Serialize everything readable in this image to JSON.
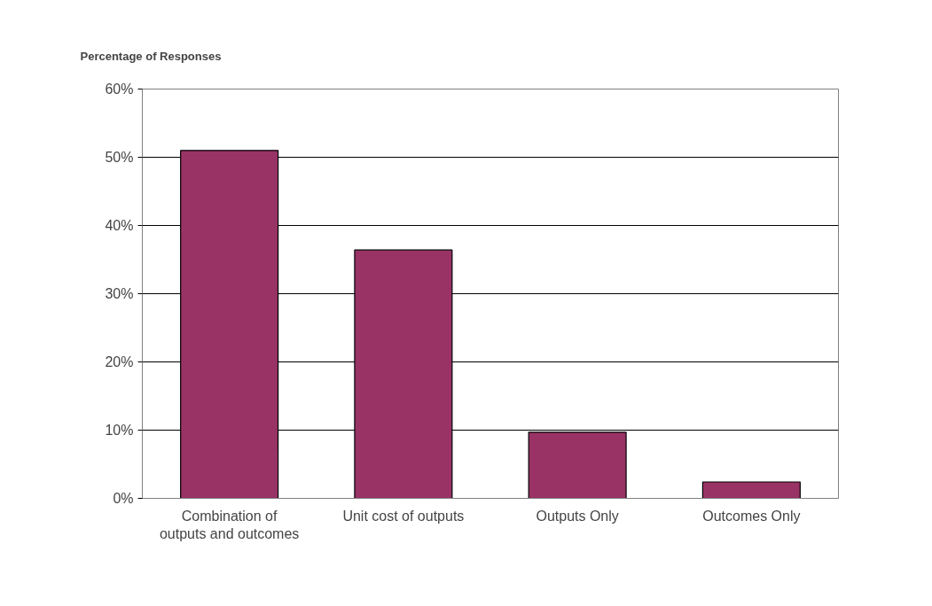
{
  "chart_data": {
    "type": "bar",
    "ylabel": "Percentage of Responses",
    "categories": [
      "Combination of outputs and outcomes",
      "Unit cost of outputs",
      "Outputs Only",
      "Outcomes Only"
    ],
    "values": [
      51,
      36.4,
      9.7,
      2.4
    ],
    "color": "#993366",
    "ylim": [
      0,
      60
    ],
    "yticks": [
      {
        "value": 0,
        "label": "0%"
      },
      {
        "value": 10,
        "label": "10%"
      },
      {
        "value": 20,
        "label": "20%"
      },
      {
        "value": 30,
        "label": "30%"
      },
      {
        "value": 40,
        "label": "40%"
      },
      {
        "value": 50,
        "label": "50%"
      },
      {
        "value": 60,
        "label": "60%"
      }
    ],
    "grid": "y"
  }
}
